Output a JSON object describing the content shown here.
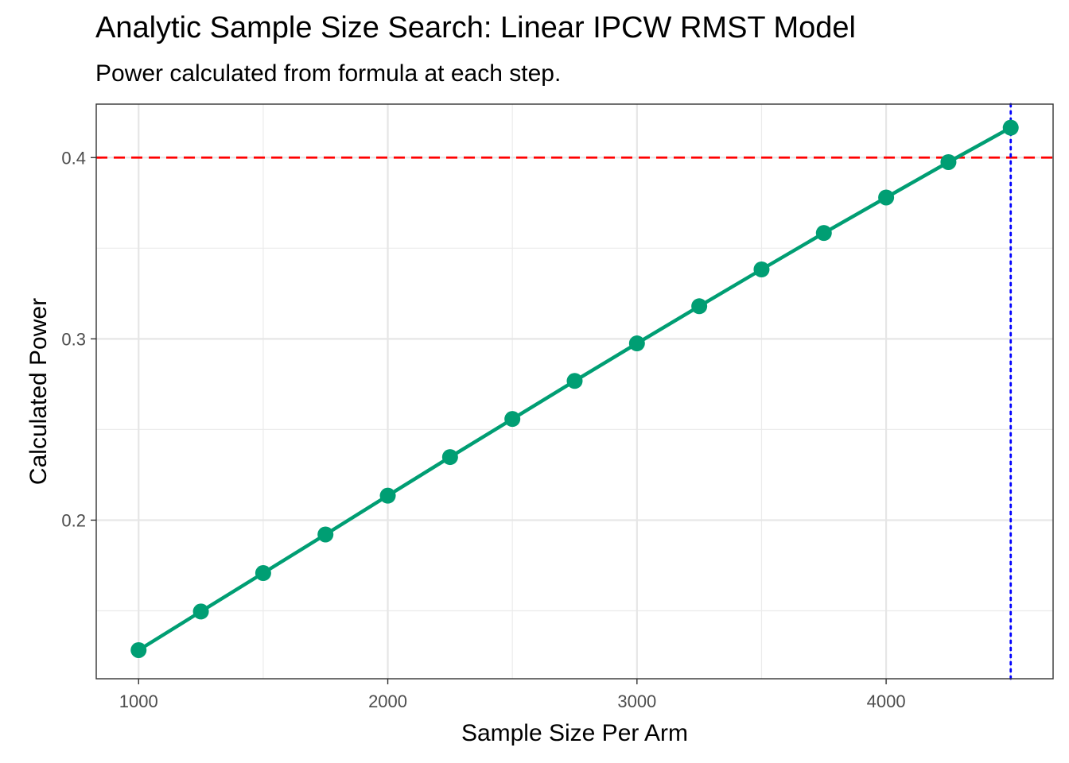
{
  "chart_data": {
    "type": "line",
    "title": "Analytic Sample Size Search: Linear IPCW RMST Model",
    "subtitle": "Power calculated from formula at each step.",
    "xlabel": "Sample Size Per Arm",
    "ylabel": "Calculated Power",
    "xlim": [
      830,
      4670
    ],
    "ylim": [
      0.1125,
      0.4295
    ],
    "xticks": [
      1000,
      2000,
      3000,
      4000
    ],
    "xtick_labels": [
      "1000",
      "2000",
      "3000",
      "4000"
    ],
    "xminor": [
      1500,
      2500,
      3500,
      4500
    ],
    "yticks": [
      0.2,
      0.3,
      0.4
    ],
    "ytick_labels": [
      "0.2",
      "0.3",
      "0.4"
    ],
    "yminor": [
      0.15,
      0.25,
      0.35
    ],
    "grid": true,
    "series": [
      {
        "color": "#009E73",
        "x": [
          1000,
          1250,
          1500,
          1750,
          2000,
          2250,
          2500,
          2750,
          3000,
          3250,
          3500,
          3750,
          4000,
          4250,
          4500
        ],
        "y": [
          0.1283,
          0.1496,
          0.1708,
          0.1921,
          0.2135,
          0.2348,
          0.2558,
          0.2768,
          0.2975,
          0.318,
          0.3383,
          0.3584,
          0.378,
          0.3975,
          0.4165
        ]
      }
    ],
    "reference_lines": [
      {
        "orientation": "horizontal",
        "value": 0.4,
        "color": "#FF0000",
        "style": "dashed"
      },
      {
        "orientation": "vertical",
        "value": 4500,
        "color": "#0000FF",
        "style": "dotted"
      }
    ]
  }
}
